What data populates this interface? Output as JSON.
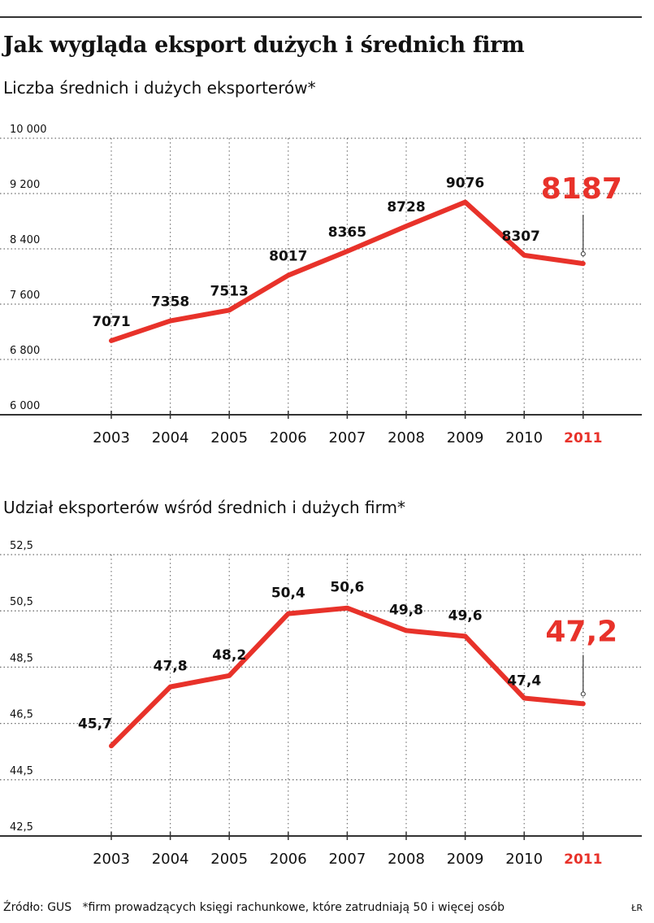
{
  "title": "Jak wygląda eksport dużych i średnich firm",
  "footer": {
    "source": "Źródło: GUS",
    "note": "*firm prowadzących księgi rachunkowe, które zatrudniają 50 i więcej osób",
    "sign": "ŁR"
  },
  "colors": {
    "line": "#e8322a",
    "highlight": "#e8322a",
    "grid": "#6d6d6d",
    "text": "#111111"
  },
  "chart_data": [
    {
      "type": "line",
      "title": "",
      "subtitle": "Liczba średnich i dużych eksporterów*",
      "xlabel": "",
      "ylabel": "",
      "categories": [
        "2003",
        "2004",
        "2005",
        "2006",
        "2007",
        "2008",
        "2009",
        "2010",
        "2011"
      ],
      "values": [
        7071,
        7358,
        7513,
        8017,
        8365,
        8728,
        9076,
        8307,
        8187
      ],
      "value_labels": [
        "7071",
        "7358",
        "7513",
        "8017",
        "8365",
        "8728",
        "9076",
        "8307",
        "8187"
      ],
      "ylim": [
        6000,
        10000
      ],
      "yticks": [
        6000,
        6800,
        7600,
        8400,
        9200,
        10000
      ],
      "ytick_labels": [
        "6 000",
        "6 800",
        "7 600",
        "8 400",
        "9 200",
        "10 000"
      ],
      "highlight_index": 8,
      "grid": "dotted"
    },
    {
      "type": "line",
      "title": "",
      "subtitle": "Udział eksporterów wśród średnich i dużych firm*",
      "xlabel": "",
      "ylabel": "",
      "categories": [
        "2003",
        "2004",
        "2005",
        "2006",
        "2007",
        "2008",
        "2009",
        "2010",
        "2011"
      ],
      "values": [
        45.7,
        47.8,
        48.2,
        50.4,
        50.6,
        49.8,
        49.6,
        47.4,
        47.2
      ],
      "value_labels": [
        "45,7",
        "47,8",
        "48,2",
        "50,4",
        "50,6",
        "49,8",
        "49,6",
        "47,4",
        "47,2"
      ],
      "ylim": [
        42.5,
        52.5
      ],
      "yticks": [
        42.5,
        44.5,
        46.5,
        48.5,
        50.5,
        52.5
      ],
      "ytick_labels": [
        "42,5",
        "44,5",
        "46,5",
        "48,5",
        "50,5",
        "52,5"
      ],
      "highlight_index": 8,
      "grid": "dotted"
    }
  ]
}
